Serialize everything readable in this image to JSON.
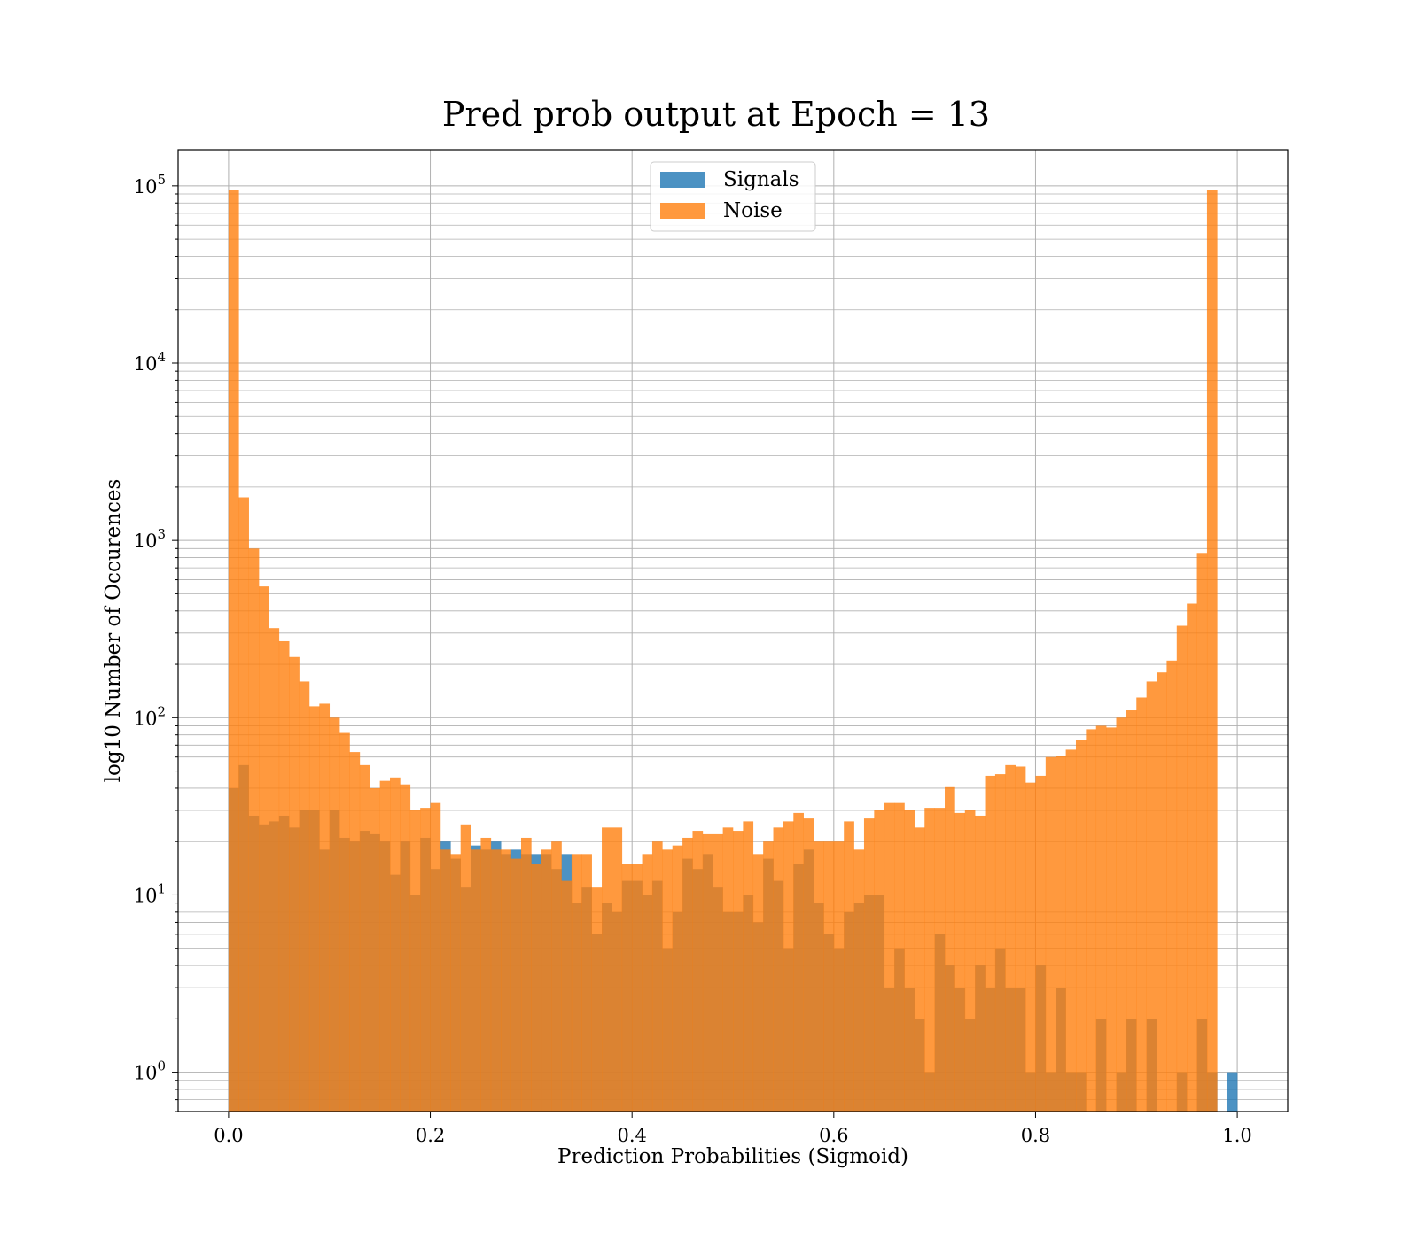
{
  "chart_data": {
    "type": "bar",
    "subtype": "histogram",
    "title": "Pred prob output at Epoch = 13",
    "xlabel": "Prediction Probabilities (Sigmoid)",
    "ylabel": "log10 Number of Occurences",
    "yscale": "log",
    "xlim": [
      -0.05,
      1.05
    ],
    "ylim": [
      0.6,
      160000
    ],
    "x_ticks": [
      "0.0",
      "0.2",
      "0.4",
      "0.6",
      "0.8",
      "1.0"
    ],
    "y_ticks": [
      {
        "base": "10",
        "exp": "0"
      },
      {
        "base": "10",
        "exp": "1"
      },
      {
        "base": "10",
        "exp": "2"
      },
      {
        "base": "10",
        "exp": "3"
      },
      {
        "base": "10",
        "exp": "4"
      },
      {
        "base": "10",
        "exp": "5"
      }
    ],
    "grid": true,
    "grid_minor_y": true,
    "legend_position": "top-center",
    "bins": 100,
    "bin_range": [
      0,
      1
    ],
    "series": [
      {
        "name": "Signals",
        "color": "#1f77b4",
        "values": [
          40,
          54,
          28,
          25,
          26,
          28,
          24,
          30,
          30,
          18,
          30,
          21,
          20,
          23,
          22,
          20,
          13,
          20,
          10,
          21,
          14,
          20,
          16,
          11,
          19,
          18,
          20,
          17,
          18,
          17,
          17,
          17,
          14,
          17,
          9,
          11,
          6,
          9,
          8,
          12,
          12,
          10,
          12,
          5,
          8,
          16,
          14,
          17,
          11,
          8,
          8,
          10,
          7,
          16,
          12,
          5,
          15,
          18,
          9,
          6,
          5,
          8,
          9,
          10,
          10,
          3,
          5,
          3,
          2,
          1,
          6,
          4,
          3,
          2,
          4,
          3,
          5,
          3,
          3,
          1,
          4,
          1,
          3,
          1,
          1,
          0,
          2,
          0,
          1,
          2,
          0,
          2,
          0,
          0,
          1,
          0,
          2,
          1,
          0,
          1
        ]
      },
      {
        "name": "Noise",
        "color": "#ff7f0e",
        "values": [
          95000,
          1750,
          900,
          550,
          320,
          270,
          220,
          160,
          116,
          120,
          100,
          82,
          64,
          54,
          40,
          44,
          46,
          42,
          30,
          31,
          33,
          18,
          17,
          25,
          18,
          21,
          18,
          18,
          16,
          21,
          15,
          18,
          20,
          12,
          17,
          17,
          11,
          24,
          24,
          15,
          15,
          17,
          20,
          18,
          19,
          21,
          23,
          22,
          22,
          24,
          23,
          26,
          17,
          20,
          24,
          26,
          29,
          27,
          20,
          20,
          20,
          26,
          18,
          27,
          30,
          33,
          33,
          30,
          24,
          31,
          31,
          41,
          29,
          30,
          28,
          47,
          48,
          54,
          53,
          43,
          47,
          60,
          61,
          66,
          75,
          86,
          90,
          88,
          100,
          110,
          130,
          160,
          180,
          210,
          330,
          440,
          850,
          95000,
          0,
          0
        ]
      }
    ],
    "series_overlay_note": ""
  }
}
